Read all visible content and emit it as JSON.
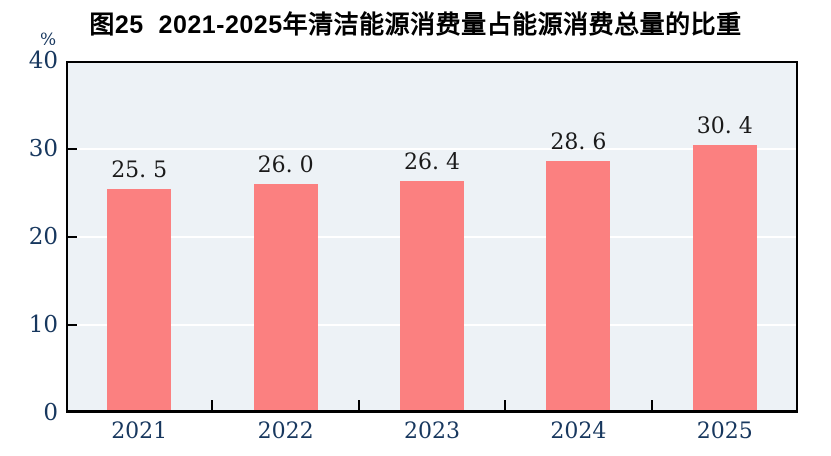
{
  "chart_data": {
    "type": "bar",
    "title": "图25  2021-2025年清洁能源消费量占能源消费总量的比重",
    "unit_label": "%",
    "categories": [
      "2021",
      "2022",
      "2023",
      "2024",
      "2025"
    ],
    "values": [
      25.5,
      26.0,
      26.4,
      28.6,
      30.4
    ],
    "value_labels": [
      "25. 5",
      "26. 0",
      "26. 4",
      "28. 6",
      "30. 4"
    ],
    "ylim": [
      0,
      40
    ],
    "yticks": [
      0,
      10,
      20,
      30,
      40
    ],
    "gridline_values": [
      10,
      20,
      30
    ],
    "legend": "none",
    "grid": "horizontal",
    "colors": {
      "bar": "#FB8080",
      "plot_background": "#EDF2F6",
      "frame": "#000000",
      "gridline": "#FFFFFF",
      "tick": "#000000",
      "axis_label": "#17375E",
      "data_label": "#1A1A1A",
      "title": "#000000"
    }
  }
}
